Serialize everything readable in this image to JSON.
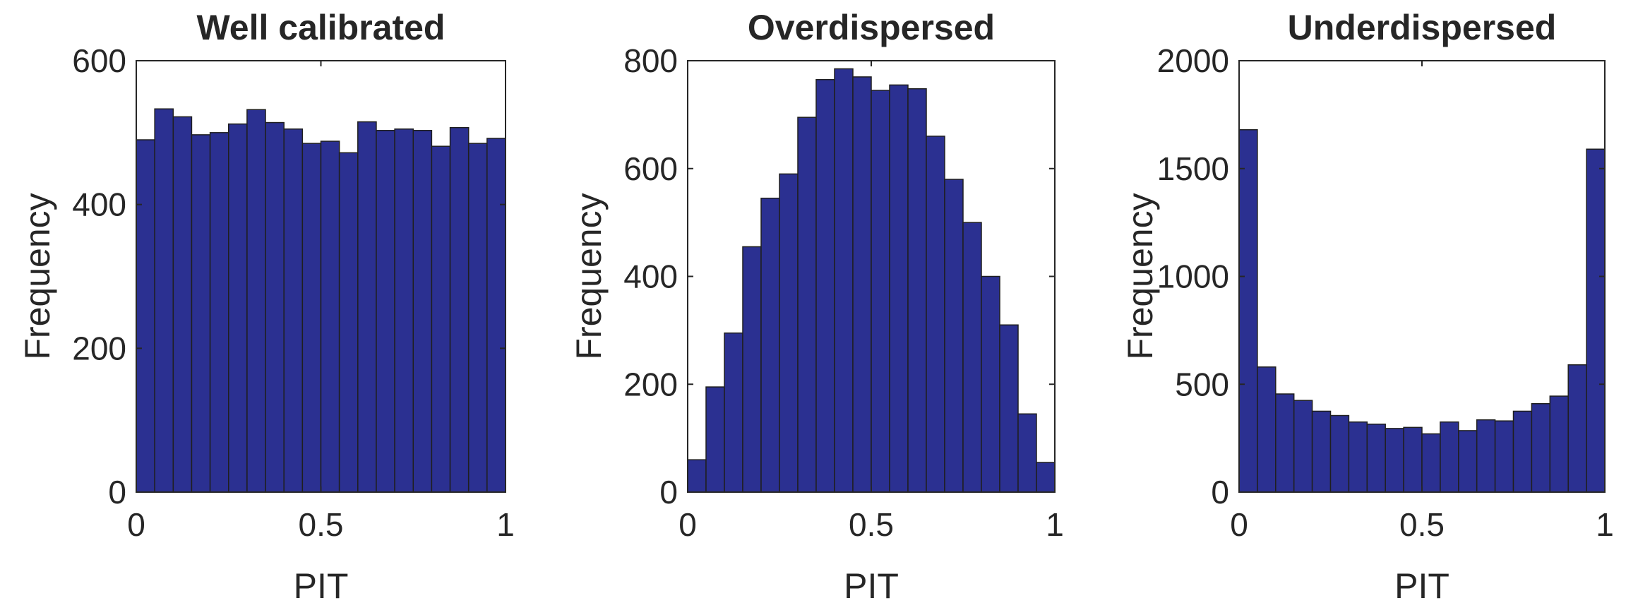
{
  "colors": {
    "bar_fill": "#2b3091",
    "bar_edge": "#1f1f1f",
    "axis": "#262626",
    "background": "#ffffff"
  },
  "chart_data": [
    {
      "type": "bar",
      "title": "Well calibrated",
      "xlabel": "PIT",
      "ylabel": "Frequency",
      "xlim": [
        0,
        1
      ],
      "ylim": [
        0,
        600
      ],
      "xticks": [
        0,
        0.5,
        1
      ],
      "xtick_labels": [
        "0",
        "0.5",
        "1"
      ],
      "yticks": [
        0,
        200,
        400,
        600
      ],
      "ytick_labels": [
        "0",
        "200",
        "400",
        "600"
      ],
      "bin_edges": [
        0,
        0.05,
        0.1,
        0.15,
        0.2,
        0.25,
        0.3,
        0.35,
        0.4,
        0.45,
        0.5,
        0.55,
        0.6,
        0.65,
        0.7,
        0.75,
        0.8,
        0.85,
        0.9,
        0.95,
        1
      ],
      "values": [
        490,
        533,
        522,
        497,
        500,
        512,
        532,
        514,
        505,
        485,
        488,
        472,
        515,
        503,
        505,
        503,
        481,
        507,
        485,
        492
      ],
      "grid": false
    },
    {
      "type": "bar",
      "title": "Overdispersed",
      "xlabel": "PIT",
      "ylabel": "Frequency",
      "xlim": [
        0,
        1
      ],
      "ylim": [
        0,
        800
      ],
      "xticks": [
        0,
        0.5,
        1
      ],
      "xtick_labels": [
        "0",
        "0.5",
        "1"
      ],
      "yticks": [
        0,
        200,
        400,
        600,
        800
      ],
      "ytick_labels": [
        "0",
        "200",
        "400",
        "600",
        "800"
      ],
      "bin_edges": [
        0,
        0.05,
        0.1,
        0.15,
        0.2,
        0.25,
        0.3,
        0.35,
        0.4,
        0.45,
        0.5,
        0.55,
        0.6,
        0.65,
        0.7,
        0.75,
        0.8,
        0.85,
        0.9,
        0.95,
        1
      ],
      "values": [
        60,
        195,
        295,
        455,
        545,
        590,
        695,
        765,
        785,
        770,
        745,
        755,
        748,
        660,
        580,
        500,
        400,
        310,
        145,
        55
      ],
      "grid": false
    },
    {
      "type": "bar",
      "title": "Underdispersed",
      "xlabel": "PIT",
      "ylabel": "Frequency",
      "xlim": [
        0,
        1
      ],
      "ylim": [
        0,
        2000
      ],
      "xticks": [
        0,
        0.5,
        1
      ],
      "xtick_labels": [
        "0",
        "0.5",
        "1"
      ],
      "yticks": [
        0,
        500,
        1000,
        1500,
        2000
      ],
      "ytick_labels": [
        "0",
        "500",
        "1000",
        "1500",
        "2000"
      ],
      "bin_edges": [
        0,
        0.05,
        0.1,
        0.15,
        0.2,
        0.25,
        0.3,
        0.35,
        0.4,
        0.45,
        0.5,
        0.55,
        0.6,
        0.65,
        0.7,
        0.75,
        0.8,
        0.85,
        0.9,
        0.95,
        1
      ],
      "values": [
        1680,
        580,
        455,
        425,
        375,
        355,
        325,
        315,
        295,
        300,
        270,
        325,
        285,
        335,
        330,
        375,
        410,
        445,
        590,
        1590
      ],
      "grid": false
    }
  ]
}
